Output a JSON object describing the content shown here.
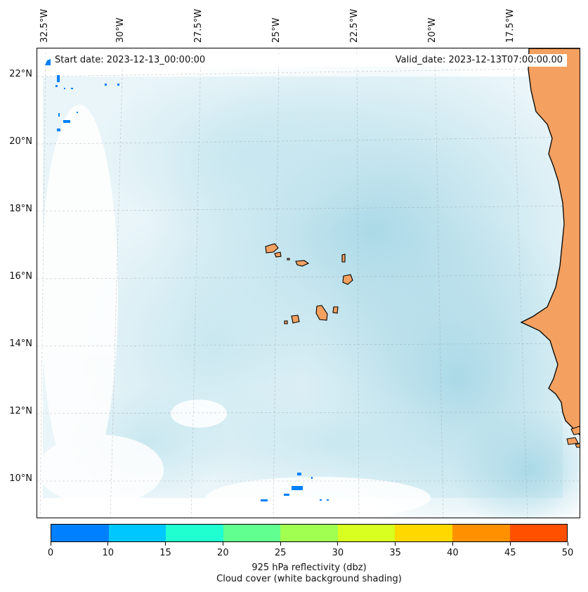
{
  "map": {
    "lon_ticks": [
      "32.5°W",
      "30°W",
      "27.5°W",
      "25°W",
      "22.5°W",
      "20°W",
      "17.5°W"
    ],
    "lat_ticks": [
      "22°N",
      "20°N",
      "18°N",
      "16°N",
      "14°N",
      "12°N",
      "10°N"
    ],
    "start_date": "Start date: 2023-12-13_00:00:00",
    "valid_date": "Valid_date: 2023-12-13T07:00:00.00",
    "land_color": "#f4a060",
    "ocean_cloud_color": "#b0dce8",
    "reflectivity_echo_color": "#0080ff"
  },
  "colorbar": {
    "colors": [
      "#0080ff",
      "#00c8ff",
      "#20ffd0",
      "#60ff90",
      "#a0ff50",
      "#d8ff20",
      "#ffd800",
      "#ff9000",
      "#ff5000"
    ],
    "tick_labels": [
      "0",
      "10",
      "15",
      "20",
      "25",
      "30",
      "35",
      "40",
      "45",
      "50"
    ],
    "title_line1": "925 hPa reflectivity (dbz)",
    "title_line2": "Cloud cover (white background shading)"
  }
}
